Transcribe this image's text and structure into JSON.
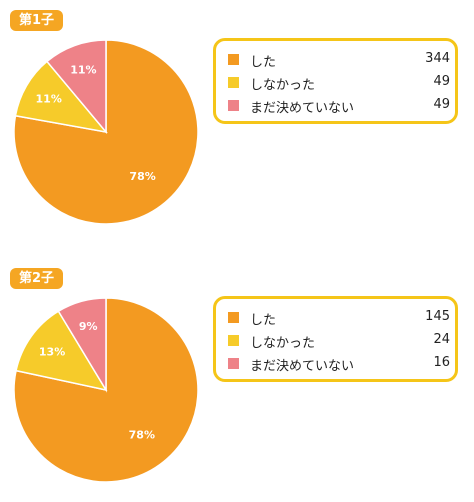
{
  "chart_data": [
    {
      "type": "pie",
      "title": "第1子",
      "colors": [
        "#f39a21",
        "#f6cb2a",
        "#ee8288"
      ],
      "slices": [
        {
          "label": "した",
          "value": 344,
          "percent_label": "78%"
        },
        {
          "label": "しなかった",
          "value": 49,
          "percent_label": "11%"
        },
        {
          "label": "まだ決めていない",
          "value": 49,
          "percent_label": "11%"
        }
      ]
    },
    {
      "type": "pie",
      "title": "第2子",
      "colors": [
        "#f39a21",
        "#f6cb2a",
        "#ee8288"
      ],
      "slices": [
        {
          "label": "した",
          "value": 145,
          "percent_label": "78%"
        },
        {
          "label": "しなかった",
          "value": 24,
          "percent_label": "13%"
        },
        {
          "label": "まだ決めていない",
          "value": 16,
          "percent_label": "9%"
        }
      ]
    }
  ]
}
